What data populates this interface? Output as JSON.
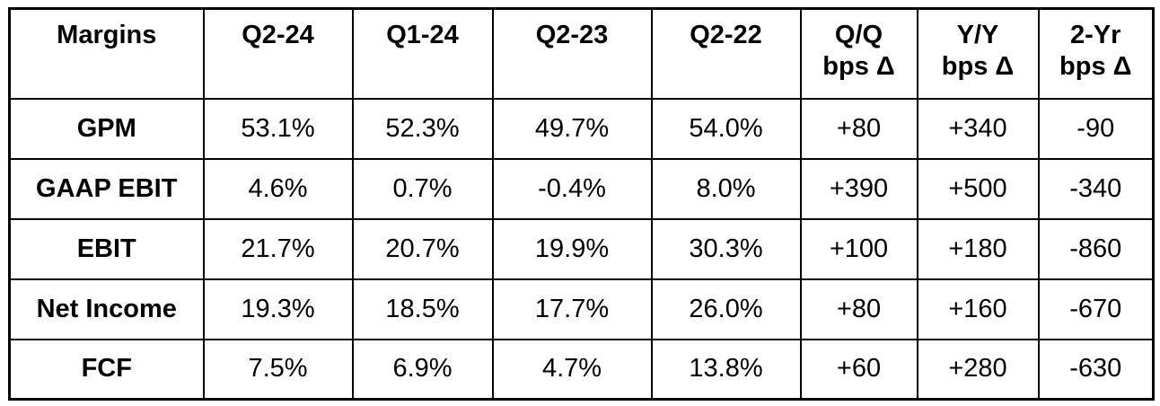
{
  "colors": {
    "background": "#ffffff",
    "border": "#000000",
    "text": "#000000"
  },
  "chart_data": {
    "type": "table",
    "title": "Margins",
    "columns": [
      {
        "line1": "Margins",
        "line2": ""
      },
      {
        "line1": "Q2-24",
        "line2": ""
      },
      {
        "line1": "Q1-24",
        "line2": ""
      },
      {
        "line1": "Q2-23",
        "line2": ""
      },
      {
        "line1": "Q2-22",
        "line2": ""
      },
      {
        "line1": "Q/Q",
        "line2": "bps Δ"
      },
      {
        "line1": "Y/Y",
        "line2": "bps Δ"
      },
      {
        "line1": "2-Yr",
        "line2": "bps Δ"
      }
    ],
    "rows": [
      {
        "label": "GPM",
        "values": [
          "53.1%",
          "52.3%",
          "49.7%",
          "54.0%",
          "+80",
          "+340",
          "-90"
        ]
      },
      {
        "label": "GAAP EBIT",
        "values": [
          "4.6%",
          "0.7%",
          "-0.4%",
          "8.0%",
          "+390",
          "+500",
          "-340"
        ]
      },
      {
        "label": "EBIT",
        "values": [
          "21.7%",
          "20.7%",
          "19.9%",
          "30.3%",
          "+100",
          "+180",
          "-860"
        ]
      },
      {
        "label": "Net Income",
        "values": [
          "19.3%",
          "18.5%",
          "17.7%",
          "26.0%",
          "+80",
          "+160",
          "-670"
        ]
      },
      {
        "label": "FCF",
        "values": [
          "7.5%",
          "6.9%",
          "4.7%",
          "13.8%",
          "+60",
          "+280",
          "-630"
        ]
      }
    ]
  }
}
